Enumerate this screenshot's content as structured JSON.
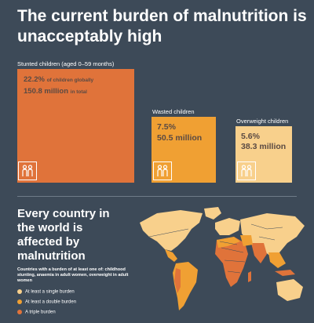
{
  "title": "The current burden of malnutrition is unacceptably high",
  "chart_data": {
    "type": "area",
    "title": "The current burden of malnutrition is unacceptably high",
    "series": [
      {
        "name": "Stunted children (aged 0–59 months)",
        "percent": 22.2,
        "millions": 150.8,
        "color": "#e0733a"
      },
      {
        "name": "Wasted children",
        "percent": 7.5,
        "millions": 50.5,
        "color": "#f0a033"
      },
      {
        "name": "Overweight children",
        "percent": 5.6,
        "millions": 38.3,
        "color": "#f8d08c"
      }
    ]
  },
  "cards": {
    "stunted": {
      "label": "Stunted children (aged 0–59 months)",
      "percent": "22.2%",
      "percent_note": "of children globally",
      "millions": "150.8 million",
      "millions_note": "in total"
    },
    "wasted": {
      "label": "Wasted children",
      "percent": "7.5%",
      "millions": "50.5 million"
    },
    "overweight": {
      "label": "Overweight children",
      "percent": "5.6%",
      "millions": "38.3 million"
    }
  },
  "icons": [
    "children-icon",
    "children-icon",
    "children-icon"
  ],
  "map_section": {
    "heading": "Every country in the world is affected by malnutrition",
    "note": "Countries with a burden of at least one of: childhood stunting, anaemia in adult women, overweight in adult women",
    "legend": [
      {
        "label": "At least a single burden",
        "color": "#f8d08c"
      },
      {
        "label": "At least a double burden",
        "color": "#f0a033"
      },
      {
        "label": "A triple burden",
        "color": "#e0733a"
      }
    ]
  },
  "colors": {
    "background": "#3d4a58",
    "stunted": "#e0733a",
    "wasted": "#f0a033",
    "overweight": "#f8d08c"
  }
}
